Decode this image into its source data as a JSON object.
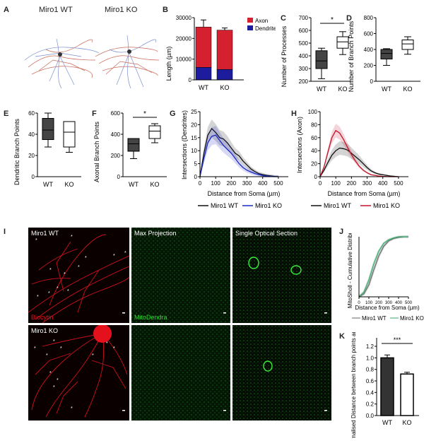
{
  "panels": {
    "A": {
      "letter": "A",
      "titles": [
        "Miro1 WT",
        "Miro1 KO"
      ]
    },
    "B": {
      "letter": "B",
      "legend": [
        "Axon",
        "Dendrite"
      ],
      "ylabel": "Length (µm)",
      "yticks": [
        "0",
        "10000",
        "20000",
        "30000"
      ],
      "xticks": [
        "WT",
        "KO"
      ]
    },
    "C": {
      "letter": "C",
      "ylabel": "Number of Processes",
      "yticks": [
        "200",
        "300",
        "400",
        "500",
        "600",
        "700"
      ],
      "xticks": [
        "WT",
        "KO"
      ],
      "sig": "*"
    },
    "D": {
      "letter": "D",
      "ylabel": "Number of Branch Points",
      "yticks": [
        "0",
        "200",
        "400",
        "600",
        "800"
      ],
      "xticks": [
        "WT",
        "KO"
      ]
    },
    "E": {
      "letter": "E",
      "ylabel": "Dendritic Branch Points",
      "yticks": [
        "0",
        "20",
        "40",
        "60"
      ],
      "xticks": [
        "WT",
        "KO"
      ]
    },
    "F": {
      "letter": "F",
      "ylabel": "Axonal Branch Points",
      "yticks": [
        "0",
        "200",
        "400",
        "600"
      ],
      "xticks": [
        "WT",
        "KO"
      ],
      "sig": "*"
    },
    "G": {
      "letter": "G",
      "ylabel": "Intersections (Dendrites)",
      "xlabel": "Distance from Soma (µm)",
      "yticks": [
        "0",
        "5",
        "10",
        "15",
        "20",
        "25"
      ],
      "xticks": [
        "0",
        "100",
        "200",
        "300",
        "400",
        "500"
      ],
      "legend": [
        "Miro1 WT",
        "Miro1 KO"
      ]
    },
    "H": {
      "letter": "H",
      "ylabel": "Intersections (Axon)",
      "xlabel": "Distance from Soma (µm)",
      "yticks": [
        "0",
        "20",
        "40",
        "60",
        "80",
        "100"
      ],
      "xticks": [
        "0",
        "100",
        "200",
        "300",
        "400",
        "500"
      ],
      "legend": [
        "Miro1 WT",
        "Miro1 KO"
      ]
    },
    "I": {
      "letter": "I",
      "row1": "Miro1 WT",
      "row2": "Miro1 KO",
      "col2": "Max Projection",
      "col3": "Single Optical Section",
      "stain1": "Biocytin",
      "stain2": "MitoDendra"
    },
    "J": {
      "letter": "J",
      "ylabel": "MitoSholl - Cumulative Distribution",
      "xlabel": "Distance from Soma (µm)",
      "xticks": [
        "0",
        "100",
        "200",
        "300",
        "400",
        "500"
      ],
      "legend": [
        "Miro1 WT",
        "Miro1 KO"
      ]
    },
    "K": {
      "letter": "K",
      "ylabel": "Normalised Distance between branch points and mito",
      "yticks": [
        "0.0",
        "0.2",
        "0.4",
        "0.6",
        "0.8",
        "1.0",
        "1.2"
      ],
      "xticks": [
        "WT",
        "KO"
      ],
      "sig": "***"
    }
  },
  "chart_data": [
    {
      "type": "bar",
      "panel": "B",
      "categories": [
        "WT",
        "KO"
      ],
      "series": [
        {
          "name": "Axon",
          "values": [
            25500,
            24000
          ]
        },
        {
          "name": "Dendrite",
          "values": [
            6000,
            5000
          ]
        }
      ],
      "ylim": [
        0,
        30000
      ]
    },
    {
      "type": "box",
      "panel": "C",
      "categories": [
        "WT",
        "KO"
      ],
      "min": [
        220,
        410
      ],
      "q1": [
        300,
        460
      ],
      "median": [
        360,
        510
      ],
      "q3": [
        440,
        550
      ],
      "max": [
        460,
        590
      ],
      "ylim": [
        200,
        700
      ]
    },
    {
      "type": "box",
      "panel": "D",
      "categories": [
        "WT",
        "KO"
      ],
      "min": [
        200,
        340
      ],
      "q1": [
        280,
        400
      ],
      "median": [
        350,
        470
      ],
      "q3": [
        400,
        520
      ],
      "max": [
        410,
        560
      ],
      "ylim": [
        0,
        800
      ]
    },
    {
      "type": "box",
      "panel": "E",
      "categories": [
        "WT",
        "KO"
      ],
      "min": [
        28,
        23
      ],
      "q1": [
        35,
        28
      ],
      "median": [
        44,
        42
      ],
      "q3": [
        55,
        52
      ],
      "max": [
        60,
        52
      ],
      "ylim": [
        0,
        60
      ]
    },
    {
      "type": "box",
      "panel": "F",
      "categories": [
        "WT",
        "KO"
      ],
      "min": [
        170,
        320
      ],
      "q1": [
        240,
        360
      ],
      "median": [
        310,
        430
      ],
      "q3": [
        360,
        480
      ],
      "max": [
        360,
        500
      ],
      "ylim": [
        0,
        600
      ]
    },
    {
      "type": "line",
      "panel": "G",
      "x": [
        0,
        25,
        50,
        75,
        100,
        125,
        150,
        175,
        200,
        225,
        250,
        275,
        300,
        325,
        350,
        375,
        400,
        425,
        450,
        475,
        500
      ],
      "series": [
        {
          "name": "Miro1 WT",
          "values": [
            0,
            9,
            16,
            18.5,
            17,
            15,
            14.5,
            13,
            11,
            9,
            8,
            6,
            4.5,
            3,
            2,
            1.2,
            0.8,
            0.5,
            0.3,
            0.1,
            0
          ]
        },
        {
          "name": "Miro1 KO",
          "values": [
            0,
            7,
            13,
            15.5,
            16,
            14,
            12,
            10.5,
            9,
            7,
            5,
            3.5,
            2.5,
            1.8,
            1.2,
            0.8,
            0.4,
            0.2,
            0.1,
            0,
            0
          ]
        }
      ],
      "xlim": [
        0,
        550
      ],
      "ylim": [
        0,
        25
      ]
    },
    {
      "type": "line",
      "panel": "H",
      "x": [
        0,
        25,
        50,
        75,
        100,
        125,
        150,
        175,
        200,
        225,
        250,
        275,
        300,
        325,
        350,
        375,
        400,
        425,
        450,
        475,
        500
      ],
      "series": [
        {
          "name": "Miro1 WT",
          "values": [
            0,
            10,
            22,
            33,
            40,
            44,
            43,
            41,
            36,
            31,
            26,
            20,
            14,
            9,
            6,
            4,
            3,
            2,
            1,
            0.5,
            0
          ]
        },
        {
          "name": "Miro1 KO",
          "values": [
            0,
            15,
            38,
            60,
            71,
            67,
            57,
            45,
            34,
            24,
            16,
            10,
            6,
            3,
            2,
            1,
            0.5,
            0.2,
            0,
            0,
            0
          ]
        }
      ],
      "xlim": [
        0,
        550
      ],
      "ylim": [
        0,
        100
      ]
    },
    {
      "type": "line",
      "panel": "J",
      "x": [
        0,
        50,
        100,
        150,
        200,
        250,
        300,
        350,
        400,
        450,
        500
      ],
      "series": [
        {
          "name": "Miro1 WT",
          "values": [
            0,
            0.05,
            0.2,
            0.45,
            0.68,
            0.84,
            0.93,
            0.97,
            0.99,
            1,
            1
          ]
        },
        {
          "name": "Miro1 KO",
          "values": [
            0,
            0.08,
            0.28,
            0.55,
            0.76,
            0.89,
            0.95,
            0.98,
            1,
            1,
            1
          ]
        }
      ],
      "xlim": [
        0,
        500
      ],
      "ylim": [
        0,
        1
      ]
    },
    {
      "type": "bar",
      "panel": "K",
      "categories": [
        "WT",
        "KO"
      ],
      "values": [
        1.0,
        0.72
      ],
      "errors": [
        0.05,
        0.03
      ],
      "ylim": [
        0,
        1.2
      ]
    }
  ]
}
